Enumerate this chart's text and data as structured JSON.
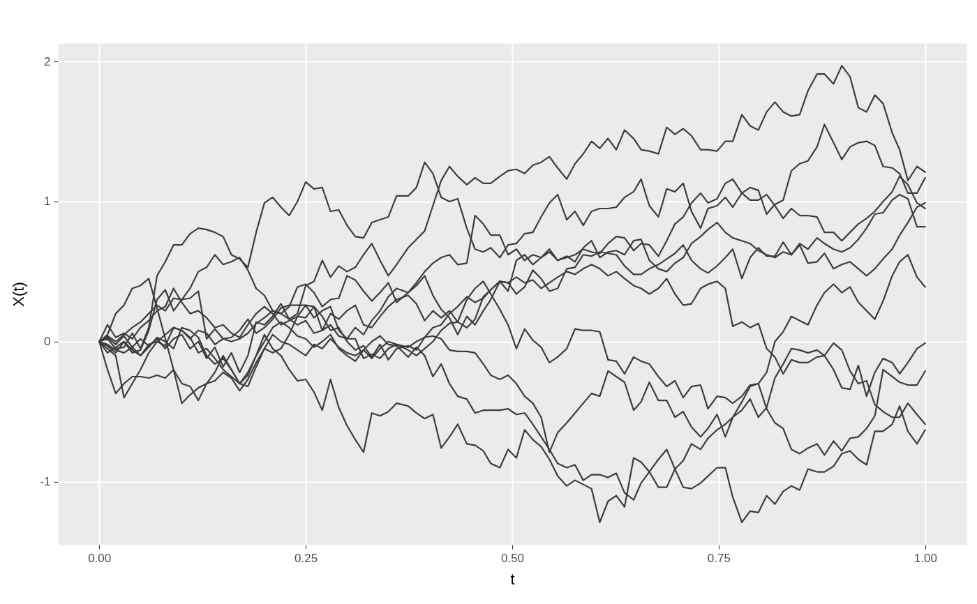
{
  "chart_data": {
    "type": "line",
    "xlabel": "t",
    "ylabel": "X(t)",
    "xlim": [
      -0.05,
      1.05
    ],
    "ylim": [
      -1.45,
      2.13
    ],
    "xticks": [
      {
        "value": 0,
        "label": "0.00"
      },
      {
        "value": 0.25,
        "label": "0.25"
      },
      {
        "value": 0.5,
        "label": "0.50"
      },
      {
        "value": 0.75,
        "label": "0.75"
      },
      {
        "value": 1,
        "label": "1.00"
      }
    ],
    "yticks": [
      -1,
      0,
      1,
      2
    ],
    "grid": true,
    "line_style": "solid",
    "x": [
      0,
      0.01,
      0.02,
      0.03,
      0.04,
      0.05,
      0.06,
      0.07,
      0.08,
      0.09,
      0.1,
      0.11,
      0.12,
      0.13,
      0.14,
      0.15,
      0.16,
      0.17,
      0.18,
      0.19,
      0.2,
      0.21,
      0.22,
      0.23,
      0.24,
      0.25,
      0.26,
      0.27,
      0.28,
      0.29,
      0.3,
      0.31,
      0.32,
      0.33,
      0.34,
      0.35,
      0.36,
      0.374,
      0.384,
      0.394,
      0.404,
      0.414,
      0.424,
      0.434,
      0.445,
      0.455,
      0.465,
      0.474,
      0.485,
      0.495,
      0.505,
      0.515,
      0.525,
      0.535,
      0.545,
      0.555,
      0.566,
      0.576,
      0.586,
      0.596,
      0.606,
      0.616,
      0.626,
      0.636,
      0.647,
      0.656,
      0.666,
      0.677,
      0.687,
      0.697,
      0.707,
      0.717,
      0.728,
      0.737,
      0.748,
      0.758,
      0.767,
      0.778,
      0.788,
      0.798,
      0.808,
      0.818,
      0.828,
      0.838,
      0.848,
      0.858,
      0.869,
      0.878,
      0.889,
      0.899,
      0.909,
      0.919,
      0.929,
      0.939,
      0.949,
      0.96,
      0.969,
      0.979,
      0.99,
      1
    ],
    "series": [
      {
        "color": "#3d3d3d",
        "values": [
          0,
          0.03,
          -0.02,
          0.04,
          -0.04,
          0.02,
          -0.03,
          0.02,
          -0.05,
          0.02,
          0.05,
          -0.05,
          0,
          -0.12,
          -0.04,
          -0.18,
          -0.08,
          -0.22,
          -0.1,
          0.14,
          0.12,
          0.18,
          0.27,
          0.16,
          0.2,
          0.4,
          0.43,
          0.58,
          0.46,
          0.54,
          0.5,
          0.53,
          0.62,
          0.7,
          0.58,
          0.47,
          0.55,
          0.67,
          0.73,
          0.79,
          0.97,
          1.15,
          1.25,
          1.18,
          1.12,
          1.17,
          1.13,
          1.13,
          1.18,
          1.22,
          1.23,
          1.2,
          1.26,
          1.28,
          1.32,
          1.24,
          1.16,
          1.27,
          1.34,
          1.43,
          1.38,
          1.45,
          1.37,
          1.51,
          1.45,
          1.37,
          1.36,
          1.34,
          1.53,
          1.48,
          1.52,
          1.47,
          1.37,
          1.37,
          1.36,
          1.43,
          1.43,
          1.62,
          1.54,
          1.51,
          1.64,
          1.71,
          1.64,
          1.61,
          1.62,
          1.79,
          1.91,
          1.91,
          1.84,
          1.97,
          1.89,
          1.67,
          1.64,
          1.76,
          1.7,
          1.49,
          1.37,
          1.15,
          1.25,
          1.21
        ]
      },
      {
        "color": "#3d3d3d",
        "values": [
          0,
          0.02,
          -0.05,
          -0.04,
          0.06,
          -0.05,
          0.1,
          0.47,
          0.57,
          0.69,
          0.69,
          0.77,
          0.81,
          0.8,
          0.78,
          0.75,
          0.62,
          0.59,
          0.53,
          0.78,
          0.99,
          1.03,
          0.96,
          0.9,
          1,
          1.14,
          1.09,
          1.1,
          0.93,
          0.94,
          0.83,
          0.75,
          0.74,
          0.85,
          0.87,
          0.89,
          1.04,
          1.04,
          1.1,
          1.28,
          1.2,
          1.03,
          1,
          1.02,
          0.81,
          0.66,
          0.64,
          0.67,
          0.6,
          0.69,
          0.7,
          0.77,
          0.78,
          0.89,
          0.99,
          1.05,
          0.87,
          0.93,
          0.83,
          0.93,
          0.95,
          0.95,
          0.96,
          1.03,
          1.07,
          1.16,
          0.97,
          0.89,
          1.09,
          1.07,
          1.13,
          0.93,
          0.81,
          0.95,
          0.97,
          1.03,
          0.96,
          1.06,
          1.1,
          1.08,
          0.91,
          0.98,
          1.01,
          1.22,
          1.27,
          1.29,
          1.39,
          1.55,
          1.42,
          1.3,
          1.39,
          1.42,
          1.43,
          1.4,
          1.25,
          1.24,
          1.2,
          1.06,
          1.06,
          1.17
        ]
      },
      {
        "color": "#3d3d3d",
        "values": [
          0,
          0.04,
          0,
          0.05,
          0.1,
          0.14,
          0.2,
          0.26,
          0.22,
          0.31,
          0.3,
          0.38,
          0.5,
          0.53,
          0.62,
          0.55,
          0.57,
          0.6,
          0.51,
          0.38,
          0.33,
          0.22,
          0.2,
          0.25,
          0.39,
          0.41,
          0.35,
          0.25,
          0.3,
          0.31,
          0.47,
          0.44,
          0.36,
          0.29,
          0.35,
          0.42,
          0.28,
          0.35,
          0.4,
          0.47,
          0.33,
          0.23,
          0.17,
          0.05,
          0.18,
          0.12,
          0.22,
          0.3,
          0.43,
          0.42,
          0.34,
          0.39,
          0.51,
          0.45,
          0.36,
          0.38,
          0.52,
          0.53,
          0.62,
          0.61,
          0.64,
          0.63,
          0.62,
          0.54,
          0.48,
          0.48,
          0.52,
          0.55,
          0.59,
          0.63,
          0.69,
          0.58,
          0.52,
          0.49,
          0.54,
          0.6,
          0.66,
          0.45,
          0.6,
          0.67,
          0.61,
          0.61,
          0.71,
          0.62,
          0.69,
          0.56,
          0.57,
          0.63,
          0.52,
          0.55,
          0.57,
          0.52,
          0.47,
          0.52,
          0.59,
          0.66,
          0.76,
          0.85,
          0.96,
          0.99
        ]
      },
      {
        "color": "#3d3d3d",
        "values": [
          0,
          0.12,
          0.03,
          0.06,
          0.02,
          0.1,
          0.15,
          0.22,
          0.25,
          0.38,
          0.28,
          0.2,
          0.22,
          0.17,
          0.1,
          0.12,
          0.06,
          0.03,
          0.12,
          0.2,
          0.25,
          0.2,
          0.12,
          0.15,
          0.18,
          0.17,
          0.25,
          0.08,
          0.12,
          0.04,
          0.02,
          0.1,
          0.05,
          0.15,
          0.22,
          0.32,
          0.38,
          0.35,
          0.42,
          0.5,
          0.56,
          0.6,
          0.62,
          0.55,
          0.56,
          0.9,
          0.84,
          0.76,
          0.76,
          0.62,
          0.66,
          0.58,
          0.62,
          0.6,
          0.64,
          0.58,
          0.6,
          0.62,
          0.66,
          0.64,
          0.63,
          0.7,
          0.75,
          0.74,
          0.65,
          0.7,
          0.69,
          0.61,
          0.72,
          0.84,
          0.89,
          0.99,
          1.06,
          0.99,
          1.02,
          1.13,
          1.16,
          1.06,
          1.01,
          1.01,
          1.05,
          0.97,
          0.88,
          0.95,
          0.9,
          0.9,
          0.89,
          0.78,
          0.78,
          0.72,
          0.78,
          0.84,
          0.88,
          0.93,
          1,
          1.07,
          1.18,
          1.12,
          0.99,
          0.95
        ]
      },
      {
        "color": "#3d3d3d",
        "values": [
          0,
          0.05,
          0.2,
          0.26,
          0.38,
          0.4,
          0.45,
          0.24,
          0.02,
          -0.2,
          -0.44,
          -0.38,
          -0.33,
          -0.3,
          -0.28,
          -0.22,
          -0.26,
          -0.35,
          -0.27,
          -0.15,
          -0.05,
          -0.08,
          -0.05,
          0.05,
          0.18,
          0.26,
          0.25,
          0.18,
          0.08,
          0.1,
          0,
          -0.06,
          -0.03,
          -0.11,
          -0.02,
          -0.13,
          -0.05,
          -0.03,
          -0.06,
          0.03,
          0.1,
          0.12,
          0.2,
          0.25,
          0.32,
          0.28,
          0.31,
          0.37,
          0.43,
          0.36,
          0.58,
          0.62,
          0.55,
          0.6,
          0.66,
          0.58,
          0.61,
          0.57,
          0.67,
          0.72,
          0.6,
          0.64,
          0.65,
          0.62,
          0.72,
          0.73,
          0.58,
          0.52,
          0.5,
          0.56,
          0.6,
          0.7,
          0.75,
          0.8,
          0.85,
          0.78,
          0.74,
          0.72,
          0.7,
          0.65,
          0.62,
          0.6,
          0.64,
          0.62,
          0.7,
          0.66,
          0.74,
          0.7,
          0.66,
          0.64,
          0.67,
          0.73,
          0.81,
          0.91,
          0.92,
          1.01,
          1.05,
          1.02,
          0.82,
          0.82
        ]
      },
      {
        "color": "#3d3d3d",
        "values": [
          0,
          -0.02,
          -0.06,
          -0.08,
          -0.04,
          -0.1,
          -0.02,
          0,
          -0.03,
          0.1,
          0.08,
          0.02,
          0.08,
          0.06,
          -0.02,
          0.02,
          0,
          0.02,
          0.06,
          0.13,
          0.17,
          0.22,
          0.2,
          0.16,
          0.12,
          0.15,
          0.06,
          0.08,
          0.2,
          0.16,
          0.22,
          0.26,
          0.12,
          0.1,
          0.18,
          0.25,
          0.3,
          0.33,
          0.27,
          0.15,
          0.22,
          0.17,
          0.22,
          0.14,
          0.3,
          0.38,
          0.43,
          0.34,
          0.23,
          0.12,
          -0.05,
          0.09,
          0.01,
          -0.04,
          -0.15,
          -0.11,
          -0.05,
          0.09,
          0.08,
          0.08,
          0.07,
          -0.13,
          -0.14,
          -0.23,
          -0.11,
          -0.14,
          -0.16,
          -0.25,
          -0.32,
          -0.28,
          -0.4,
          -0.32,
          -0.31,
          -0.48,
          -0.39,
          -0.4,
          -0.44,
          -0.39,
          -0.31,
          -0.3,
          -0.22,
          0,
          0.07,
          0.18,
          0.15,
          0.12,
          0.26,
          0.35,
          0.41,
          0.35,
          0.39,
          0.28,
          0.22,
          0.16,
          0.29,
          0.47,
          0.57,
          0.62,
          0.46,
          0.39
        ]
      },
      {
        "color": "#3d3d3d",
        "values": [
          0,
          -0.08,
          -0.04,
          0,
          -0.08,
          -0.06,
          0.08,
          0.3,
          0.37,
          0.22,
          0.3,
          0.31,
          0.36,
          0.02,
          0.09,
          0.02,
          0.03,
          0.08,
          0.16,
          0.06,
          0.1,
          0.16,
          0.24,
          0.26,
          0.26,
          0.26,
          0.17,
          0.22,
          0.25,
          0.08,
          0.02,
          0.02,
          -0.12,
          -0.09,
          -0.12,
          -0.05,
          -0.02,
          -0.06,
          -0.1,
          -0.05,
          0,
          0.08,
          0.13,
          0.14,
          0.1,
          0.16,
          0.32,
          0.37,
          0.43,
          0.42,
          0.46,
          0.42,
          0.44,
          0.38,
          0.42,
          0.46,
          0.5,
          0.48,
          0.52,
          0.55,
          0.52,
          0.47,
          0.5,
          0.45,
          0.4,
          0.38,
          0.34,
          0.38,
          0.45,
          0.34,
          0.26,
          0.27,
          0.38,
          0.41,
          0.43,
          0.38,
          0.11,
          0.14,
          0.1,
          0.13,
          -0.05,
          -0.11,
          -0.23,
          -0.13,
          -0.15,
          -0.15,
          -0.11,
          -0.1,
          -0.2,
          -0.33,
          -0.34,
          -0.17,
          -0.39,
          -0.22,
          -0.12,
          -0.15,
          -0.23,
          -0.15,
          -0.05,
          -0.01
        ]
      },
      {
        "color": "#3d3d3d",
        "values": [
          0,
          -0.03,
          -0.08,
          0,
          -0.06,
          -0.1,
          -0.04,
          0.03,
          0,
          -0.05,
          0.1,
          0.08,
          0.03,
          -0.1,
          -0.16,
          -0.12,
          -0.2,
          -0.3,
          -0.22,
          -0.1,
          0,
          0.1,
          0.14,
          0.1,
          0.04,
          0.02,
          -0.04,
          0,
          0.05,
          -0.05,
          -0.1,
          -0.14,
          -0.06,
          -0.12,
          -0.05,
          0,
          -0.02,
          -0.04,
          0,
          0.03,
          0.04,
          0.02,
          -0.06,
          -0.07,
          -0.07,
          -0.08,
          -0.16,
          -0.24,
          -0.27,
          -0.24,
          -0.3,
          -0.39,
          -0.44,
          -0.54,
          -0.79,
          -0.65,
          -0.58,
          -0.51,
          -0.44,
          -0.37,
          -0.39,
          -0.21,
          -0.25,
          -0.29,
          -0.49,
          -0.43,
          -0.29,
          -0.42,
          -0.42,
          -0.54,
          -0.5,
          -0.61,
          -0.68,
          -0.62,
          -0.52,
          -0.68,
          -0.54,
          -0.43,
          -0.32,
          -0.3,
          -0.48,
          -0.58,
          -0.62,
          -0.77,
          -0.8,
          -0.76,
          -0.73,
          -0.81,
          -0.71,
          -0.78,
          -0.69,
          -0.68,
          -0.62,
          -0.53,
          -0.2,
          -0.25,
          -0.29,
          -0.31,
          -0.31,
          -0.21
        ]
      },
      {
        "color": "#3d3d3d",
        "values": [
          0,
          -0.2,
          -0.37,
          -0.3,
          -0.25,
          -0.25,
          -0.26,
          -0.24,
          -0.26,
          -0.2,
          -0.3,
          -0.32,
          -0.42,
          -0.3,
          -0.22,
          -0.1,
          -0.2,
          -0.3,
          -0.24,
          -0.1,
          0.05,
          -0.05,
          -0.1,
          -0.2,
          -0.28,
          -0.27,
          -0.36,
          -0.49,
          -0.27,
          -0.47,
          -0.6,
          -0.7,
          -0.79,
          -0.51,
          -0.53,
          -0.5,
          -0.44,
          -0.46,
          -0.51,
          -0.55,
          -0.52,
          -0.76,
          -0.68,
          -0.59,
          -0.73,
          -0.74,
          -0.78,
          -0.87,
          -0.9,
          -0.77,
          -0.83,
          -0.63,
          -0.7,
          -0.75,
          -0.84,
          -0.96,
          -1.03,
          -0.99,
          -1.02,
          -1.05,
          -1.29,
          -1.14,
          -1.1,
          -1.18,
          -0.83,
          -0.86,
          -0.93,
          -1.04,
          -1.04,
          -0.91,
          -0.85,
          -0.73,
          -0.77,
          -0.69,
          -0.63,
          -0.59,
          -0.54,
          -0.49,
          -0.41,
          -0.54,
          -0.47,
          -0.26,
          -0.16,
          -0.05,
          -0.06,
          -0.08,
          -0.06,
          -0.1,
          -0.01,
          -0.06,
          -0.21,
          -0.3,
          -0.28,
          -0.45,
          -0.5,
          -0.54,
          -0.54,
          -0.44,
          -0.52,
          -0.59
        ]
      },
      {
        "color": "#3d3d3d",
        "values": [
          0,
          -0.05,
          -0.1,
          -0.4,
          -0.3,
          -0.2,
          -0.08,
          0,
          0.05,
          0.1,
          0.08,
          0.03,
          -0.08,
          -0.05,
          -0.12,
          -0.2,
          -0.25,
          -0.3,
          -0.32,
          -0.18,
          -0.05,
          0.05,
          0,
          -0.02,
          -0.06,
          -0.1,
          -0.02,
          -0.05,
          0.02,
          -0.04,
          -0.08,
          -0.1,
          -0.06,
          0,
          0.04,
          -0.02,
          -0.03,
          -0.11,
          -0.04,
          -0.1,
          -0.25,
          -0.16,
          -0.3,
          -0.39,
          -0.41,
          -0.51,
          -0.49,
          -0.49,
          -0.49,
          -0.48,
          -0.52,
          -0.51,
          -0.59,
          -0.68,
          -0.77,
          -0.87,
          -0.9,
          -0.88,
          -0.99,
          -0.95,
          -0.95,
          -0.97,
          -0.94,
          -1.08,
          -1.13,
          -1.01,
          -0.93,
          -0.84,
          -0.77,
          -0.91,
          -1.04,
          -1.05,
          -1.01,
          -0.96,
          -0.9,
          -0.9,
          -1.11,
          -1.29,
          -1.21,
          -1.22,
          -1.1,
          -1.16,
          -1.07,
          -1.03,
          -1.06,
          -0.91,
          -0.93,
          -0.93,
          -0.89,
          -0.8,
          -0.78,
          -0.84,
          -0.88,
          -0.64,
          -0.64,
          -0.59,
          -0.46,
          -0.64,
          -0.73,
          -0.63
        ]
      }
    ]
  }
}
